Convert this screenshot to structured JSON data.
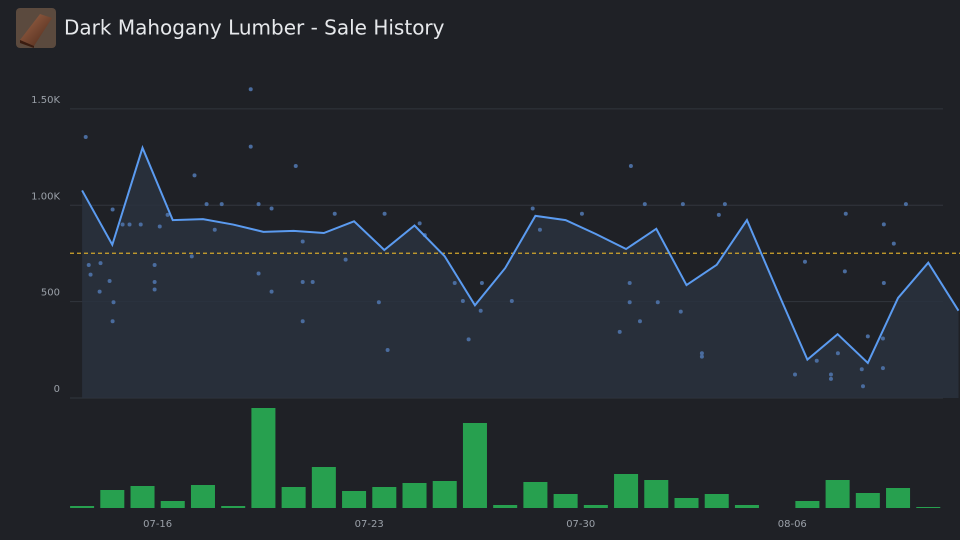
{
  "title": "Dark Mahogany Lumber - Sale History",
  "chart_data": [
    {
      "type": "line",
      "xlim": [
        -2.9,
        26.55
      ],
      "ylim": [
        0,
        1650
      ],
      "yticks": [
        0,
        500,
        {
          "value": 1000,
          "label": "1.00K"
        },
        {
          "value": 1500,
          "label": "1.50K"
        }
      ],
      "grid": true,
      "reference_line": 751,
      "reference_color": "#d4a72c",
      "fill_color": "#2a313e",
      "series": [
        {
          "type": "line",
          "color": "#5b9bf0",
          "x": [
            -2.5,
            -1.5,
            -0.5,
            0.5,
            1.5,
            2.5,
            3.5,
            4.5,
            5.5,
            6.5,
            7.5,
            8.5,
            9.5,
            10.5,
            11.5,
            12.5,
            13.5,
            14.5,
            15.5,
            16.5,
            17.5,
            18.5,
            19.5,
            20.5,
            21.5,
            22.5,
            23.5,
            24.5,
            25.5,
            26.5
          ],
          "values": [
            1077,
            795,
            1298,
            923,
            928,
            900,
            862,
            867,
            856,
            917,
            768,
            895,
            735,
            481,
            674,
            945,
            923,
            851,
            773,
            878,
            586,
            691,
            923,
            558,
            199,
            331,
            182,
            519,
            702,
            453
          ]
        },
        {
          "type": "scatter",
          "color": "#4a6c9e",
          "x": [
            -2.38,
            -2.28,
            -2.22,
            -1.92,
            -1.89,
            -1.59,
            -1.49,
            -1.46,
            -1.49,
            -1.16,
            -0.93,
            -0.56,
            -0.1,
            -0.1,
            -0.1,
            0.07,
            0.33,
            1.22,
            1.13,
            1.62,
            2.12,
            1.89,
            3.08,
            3.08,
            3.34,
            3.34,
            3.77,
            3.77,
            4.57,
            4.8,
            4.8,
            5.13,
            4.8,
            5.86,
            6.22,
            7.32,
            7.61,
            7.51,
            8.67,
            8.84,
            9.83,
            10.1,
            10.29,
            10.69,
            10.73,
            11.72,
            12.41,
            12.65,
            14.04,
            15.29,
            15.66,
            15.62,
            15.62,
            15.96,
            16.12,
            16.55,
            17.38,
            17.31,
            18.01,
            18.01,
            18.57,
            18.77,
            21.09,
            21.42,
            21.81,
            22.28,
            22.28,
            22.51,
            22.77,
            22.74,
            23.34,
            23.3,
            23.5,
            24.0,
            24.0,
            24.03,
            24.03,
            24.76,
            24.36
          ],
          "values": [
            1354,
            690,
            640,
            552,
            700,
            607,
            398,
            497,
            978,
            900,
            900,
            900,
            602,
            563,
            690,
            890,
            950,
            1155,
            735,
            1006,
            1006,
            873,
            1602,
            1304,
            1006,
            646,
            552,
            983,
            1204,
            398,
            602,
            602,
            812,
            956,
            718,
            497,
            249,
            956,
            906,
            845,
            597,
            503,
            304,
            453,
            597,
            503,
            983,
            873,
            956,
            343,
            1204,
            597,
            497,
            398,
            1006,
            497,
            1006,
            448,
            232,
            215,
            950,
            1006,
            122,
            707,
            193,
            122,
            99,
            232,
            956,
            657,
            61,
            149,
            320,
            155,
            309,
            597,
            901,
            1006,
            801
          ]
        }
      ]
    },
    {
      "type": "bar",
      "color": "#27a04f",
      "xlim": [
        -2.9,
        26.55
      ],
      "ylim": [
        0,
        100
      ],
      "x": [
        -2.5,
        -1.5,
        -0.5,
        0.5,
        1.5,
        2.5,
        3.5,
        4.5,
        5.5,
        6.5,
        7.5,
        8.5,
        9.5,
        10.5,
        11.5,
        12.5,
        13.5,
        14.5,
        15.5,
        16.5,
        17.5,
        18.5,
        19.5,
        20.5,
        21.5,
        22.5,
        23.5,
        24.5,
        25.5,
        26.5
      ],
      "values": [
        2,
        18,
        22,
        7,
        23,
        2,
        100,
        21,
        41,
        17,
        21,
        25,
        27,
        85,
        3,
        26,
        14,
        3,
        34,
        28,
        10,
        14,
        3,
        null,
        7,
        28,
        15,
        20,
        1,
        null
      ],
      "xticks": [
        {
          "value": 0,
          "label": "07-16"
        },
        {
          "value": 7,
          "label": "07-23"
        },
        {
          "value": 14,
          "label": "07-30"
        },
        {
          "value": 21,
          "label": "08-06"
        }
      ]
    }
  ]
}
